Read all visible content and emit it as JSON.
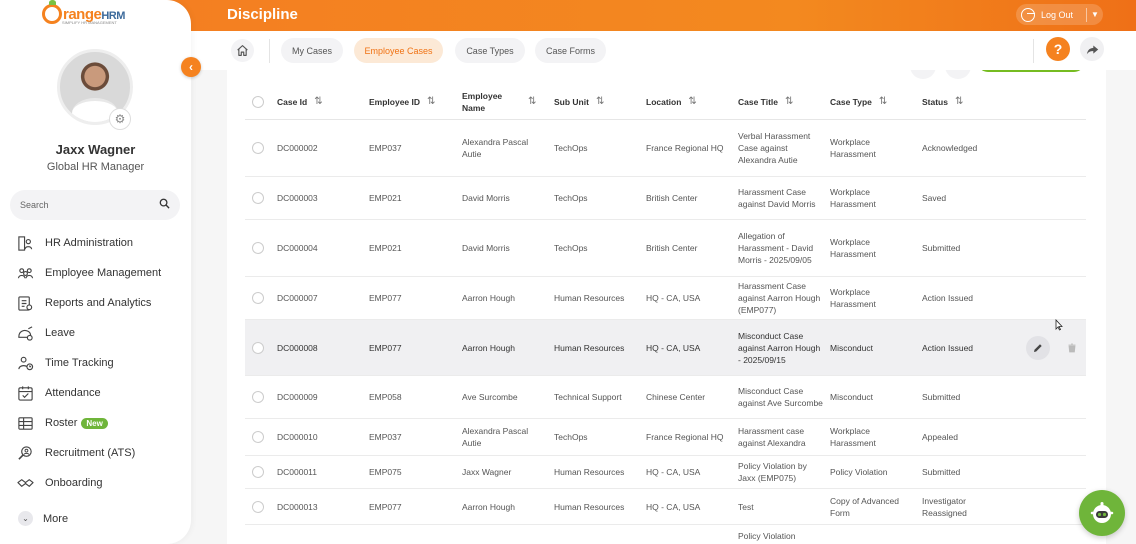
{
  "app": {
    "logo_main": "range",
    "logo_hrm": "HRM",
    "logo_tagline": "SIMPLIFY HR MANAGEMENT",
    "page_title": "Discipline"
  },
  "header": {
    "logout_label": "Log Out",
    "help_label": "?"
  },
  "user": {
    "name": "Jaxx Wagner",
    "role": "Global HR Manager"
  },
  "search": {
    "placeholder": "Search"
  },
  "sidebar": {
    "items": [
      {
        "label": "HR Administration",
        "icon": "hr-admin-icon"
      },
      {
        "label": "Employee Management",
        "icon": "employee-management-icon"
      },
      {
        "label": "Reports and Analytics",
        "icon": "reports-icon"
      },
      {
        "label": "Leave",
        "icon": "leave-icon"
      },
      {
        "label": "Time Tracking",
        "icon": "time-tracking-icon"
      },
      {
        "label": "Attendance",
        "icon": "attendance-icon"
      },
      {
        "label": "Roster",
        "icon": "roster-icon",
        "badge": "New"
      },
      {
        "label": "Recruitment (ATS)",
        "icon": "recruitment-icon"
      },
      {
        "label": "Onboarding",
        "icon": "onboarding-icon"
      }
    ],
    "more_label": "More"
  },
  "tabs": [
    {
      "label": "My Cases",
      "active": false
    },
    {
      "label": "Employee Cases",
      "active": true
    },
    {
      "label": "Case Types",
      "active": false
    },
    {
      "label": "Case Forms",
      "active": false
    }
  ],
  "table": {
    "headers": {
      "case_id": "Case Id",
      "employee_id": "Employee ID",
      "employee_name": "Employee Name",
      "sub_unit": "Sub Unit",
      "location": "Location",
      "case_title": "Case Title",
      "case_type": "Case Type",
      "status": "Status"
    },
    "rows": [
      {
        "case_id": "DC000002",
        "employee_id": "EMP037",
        "employee_name": "Alexandra Pascal Autie",
        "sub_unit": "TechOps",
        "location": "France Regional HQ",
        "case_title": "Verbal Harassment Case against Alexandra Autie",
        "case_type": "Workplace Harassment",
        "status": "Acknowledged"
      },
      {
        "case_id": "DC000003",
        "employee_id": "EMP021",
        "employee_name": "David Morris",
        "sub_unit": "TechOps",
        "location": "British Center",
        "case_title": "Harassment Case against David Morris",
        "case_type": "Workplace Harassment",
        "status": "Saved"
      },
      {
        "case_id": "DC000004",
        "employee_id": "EMP021",
        "employee_name": "David Morris",
        "sub_unit": "TechOps",
        "location": "British Center",
        "case_title": "Allegation of Harassment - David Morris - 2025/09/05",
        "case_type": "Workplace Harassment",
        "status": "Submitted"
      },
      {
        "case_id": "DC000007",
        "employee_id": "EMP077",
        "employee_name": "Aarron Hough",
        "sub_unit": "Human Resources",
        "location": "HQ - CA, USA",
        "case_title": "Harassment Case against Aarron Hough (EMP077)",
        "case_type": "Workplace Harassment",
        "status": "Action Issued"
      },
      {
        "case_id": "DC000008",
        "employee_id": "EMP077",
        "employee_name": "Aarron Hough",
        "sub_unit": "Human Resources",
        "location": "HQ - CA, USA",
        "case_title": "Misconduct Case against Aarron Hough - 2025/09/15",
        "case_type": "Misconduct",
        "status": "Action Issued"
      },
      {
        "case_id": "DC000009",
        "employee_id": "EMP058",
        "employee_name": "Ave Surcombe",
        "sub_unit": "Technical Support",
        "location": "Chinese Center",
        "case_title": "Misconduct Case against Ave Surcombe",
        "case_type": "Misconduct",
        "status": "Submitted"
      },
      {
        "case_id": "DC000010",
        "employee_id": "EMP037",
        "employee_name": "Alexandra Pascal Autie",
        "sub_unit": "TechOps",
        "location": "France Regional HQ",
        "case_title": "Harassment case against Alexandra",
        "case_type": "Workplace Harassment",
        "status": "Appealed"
      },
      {
        "case_id": "DC000011",
        "employee_id": "EMP075",
        "employee_name": "Jaxx Wagner",
        "sub_unit": "Human Resources",
        "location": "HQ - CA, USA",
        "case_title": "Policy Violation by Jaxx (EMP075)",
        "case_type": "Policy Violation",
        "status": "Submitted"
      },
      {
        "case_id": "DC000013",
        "employee_id": "EMP077",
        "employee_name": "Aarron Hough",
        "sub_unit": "Human Resources",
        "location": "HQ - CA, USA",
        "case_title": "Test",
        "case_type": "Copy of Advanced Form",
        "status": "Investigator Reassigned"
      },
      {
        "case_id": "",
        "employee_id": "",
        "employee_name": "",
        "sub_unit": "",
        "location": "",
        "case_title": "Policy Violation",
        "case_type": "",
        "status": ""
      }
    ]
  },
  "colors": {
    "brand_orange": "#f5821f",
    "brand_green": "#76bc21",
    "badge_green": "#6fb53a"
  }
}
